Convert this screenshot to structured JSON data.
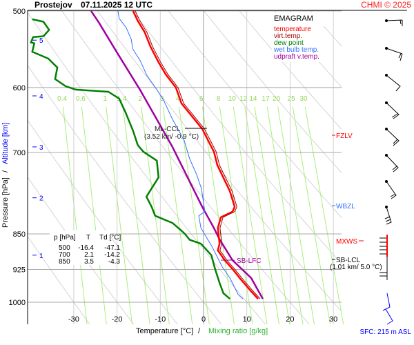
{
  "header": {
    "station": "Prostejov",
    "datetime": "07.11.2025 12 UTC",
    "copyright": "CHMI © 2025"
  },
  "legend": {
    "title": "EMAGRAM",
    "items": [
      {
        "label": "temperature",
        "color": "#ff0000"
      },
      {
        "label": "virt.temp.",
        "color": "#a00000"
      },
      {
        "label": "dew point",
        "color": "#008000"
      },
      {
        "label": "wet bulb temp.",
        "color": "#3070ff"
      },
      {
        "label": "udpraft v.temp.",
        "color": "#a000a0"
      }
    ]
  },
  "table": {
    "headers": [
      "p [hPa]",
      "T",
      "Td [°C]"
    ],
    "rows": [
      [
        "500",
        "-16.4",
        "-47.1"
      ],
      [
        "700",
        "2.1",
        "-14.2"
      ],
      [
        "850",
        "3.5",
        "-4.3"
      ]
    ]
  },
  "annotations": {
    "ml_ccl": "ML-CCL",
    "ml_ccl_info": "(3.52 km/ -0.9 °C)",
    "sb_lfc": "SB-LFC",
    "sb_lcl": "SB-LCL",
    "sb_lcl_info": "(1.01 km/ 5.0 °C)",
    "fzlv": "FZLV",
    "wbzl": "WBZL",
    "mxws": "MXWS"
  },
  "footer": {
    "sfc": "SFC: 215 m ASL"
  },
  "chart_data": {
    "type": "line",
    "title": "Prostejov 07.11.2025 12 UTC",
    "xlabel": "Temperature [°C]",
    "xlabel2": "Mixing ratio [g/kg]",
    "ylabel": "Pressure [hPa]",
    "ylabel2": "Altitude [km]",
    "xlim": [
      -40.5,
      37.5
    ],
    "ylim": [
      1054,
      488
    ],
    "x_ticks": [
      -30,
      -20,
      -10,
      0,
      10,
      20,
      30
    ],
    "p_ticks": [
      500,
      600,
      700,
      850,
      925,
      1000
    ],
    "altitude_ticks": [
      {
        "km": "1",
        "p": 894
      },
      {
        "km": "2",
        "p": 780
      },
      {
        "km": "3",
        "p": 691
      },
      {
        "km": "4",
        "p": 612
      },
      {
        "km": "5",
        "p": 536
      }
    ],
    "mixing_ratio_lines": [
      "0.4",
      "0.6",
      "1",
      "1.4",
      "2",
      "3",
      "4",
      "6",
      "8",
      "10",
      "12",
      "14",
      "17",
      "20",
      "25",
      "30"
    ],
    "dry_adiabats_theta_c": [
      -30,
      -20,
      -10,
      0,
      10,
      20,
      30,
      40,
      50,
      60,
      70,
      80,
      90,
      100
    ],
    "series": [
      {
        "name": "temperature",
        "color": "#ff0000",
        "width": 2.5,
        "points": [
          [
            500,
            -16.3
          ],
          [
            512,
            -15.2
          ],
          [
            526,
            -13.6
          ],
          [
            544,
            -12.3
          ],
          [
            565,
            -10.4
          ],
          [
            581,
            -8.8
          ],
          [
            600,
            -6.4
          ],
          [
            623,
            -5.1
          ],
          [
            662,
            -0.3
          ],
          [
            699,
            2.4
          ],
          [
            722,
            3.2
          ],
          [
            768,
            6.1
          ],
          [
            797,
            7.2
          ],
          [
            806,
            6.7
          ],
          [
            817,
            4.0
          ],
          [
            838,
            3.3
          ],
          [
            870,
            3.7
          ],
          [
            884,
            3.3
          ],
          [
            905,
            4.9
          ],
          [
            924,
            6.7
          ],
          [
            947,
            8.6
          ],
          [
            971,
            10.7
          ],
          [
            992,
            12.6
          ]
        ]
      },
      {
        "name": "virt.temp.",
        "color": "#a00000",
        "width": 1,
        "offset_of": "temperature",
        "offset": 0.5
      },
      {
        "name": "dew point",
        "color": "#008000",
        "width": 2.5,
        "points": [
          [
            510,
            -39.6
          ],
          [
            513,
            -37.0
          ],
          [
            523,
            -35.7
          ],
          [
            531,
            -37.0
          ],
          [
            532,
            -39.4
          ],
          [
            539,
            -39.9
          ],
          [
            540,
            -39.1
          ],
          [
            551,
            -39.6
          ],
          [
            560,
            -35.9
          ],
          [
            572,
            -33.8
          ],
          [
            588,
            -34.3
          ],
          [
            598,
            -31.9
          ],
          [
            603,
            -29.5
          ],
          [
            606,
            -22.0
          ],
          [
            616,
            -19.5
          ],
          [
            637,
            -18.0
          ],
          [
            665,
            -16.3
          ],
          [
            688,
            -15.2
          ],
          [
            699,
            -13.9
          ],
          [
            714,
            -10.8
          ],
          [
            743,
            -10.4
          ],
          [
            778,
            -13.2
          ],
          [
            797,
            -12.0
          ],
          [
            814,
            -11.2
          ],
          [
            828,
            -7.2
          ],
          [
            842,
            -5.3
          ],
          [
            850,
            -4.3
          ],
          [
            862,
            -3.2
          ],
          [
            870,
            -0.6
          ],
          [
            894,
            1.8
          ],
          [
            925,
            2.7
          ],
          [
            955,
            3.7
          ],
          [
            979,
            4.6
          ],
          [
            992,
            6.1
          ]
        ]
      },
      {
        "name": "wet bulb temp.",
        "color": "#3070ff",
        "width": 1,
        "points": [
          [
            500,
            -19.8
          ],
          [
            509,
            -19.5
          ],
          [
            520,
            -17.9
          ],
          [
            535,
            -16.7
          ],
          [
            547,
            -16.4
          ],
          [
            562,
            -14.7
          ],
          [
            583,
            -13.1
          ],
          [
            603,
            -10.8
          ],
          [
            620,
            -9.1
          ],
          [
            647,
            -7.2
          ],
          [
            680,
            -4.5
          ],
          [
            711,
            -3.2
          ],
          [
            738,
            -1.6
          ],
          [
            763,
            -0.5
          ],
          [
            806,
            0.3
          ],
          [
            814,
            -1.1
          ],
          [
            838,
            -0.6
          ],
          [
            847,
            0.0
          ],
          [
            875,
            1.9
          ],
          [
            919,
            4.3
          ],
          [
            944,
            6.1
          ],
          [
            982,
            8.0
          ],
          [
            992,
            9.1
          ]
        ]
      },
      {
        "name": "udpraft v.temp.",
        "color": "#a000a0",
        "width": 2.5,
        "points": [
          [
            500,
            -26.0
          ],
          [
            514,
            -24.2
          ],
          [
            553,
            -19.9
          ],
          [
            603,
            -14.7
          ],
          [
            691,
            -7.2
          ],
          [
            797,
            -0.3
          ],
          [
            838,
            2.4
          ],
          [
            861,
            3.7
          ],
          [
            905,
            6.7
          ],
          [
            944,
            11.0
          ],
          [
            992,
            13.7
          ]
        ]
      }
    ]
  }
}
